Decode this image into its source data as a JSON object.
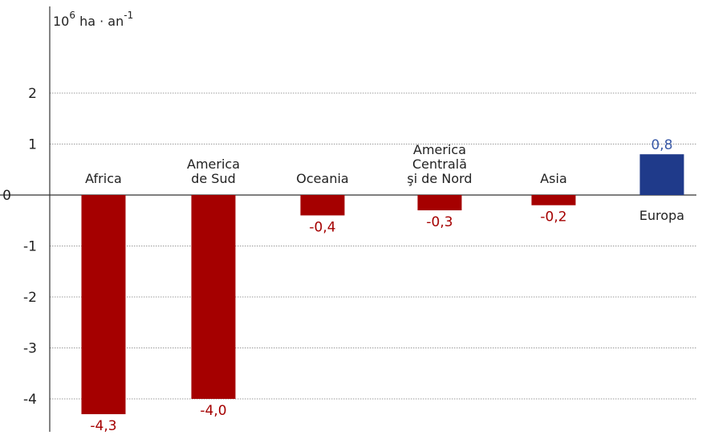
{
  "chart_data": {
    "type": "bar",
    "unit_label": {
      "base": "10",
      "exp1": "6",
      "mid": " ha · an",
      "exp2": "-1"
    },
    "categories": [
      [
        "Africa"
      ],
      [
        "America",
        "de Sud"
      ],
      [
        "Oceania"
      ],
      [
        "America",
        "Centrală",
        "şi de Nord"
      ],
      [
        "Asia"
      ],
      [
        "Europa"
      ]
    ],
    "values": [
      -4.3,
      -4.0,
      -0.4,
      -0.3,
      -0.2,
      0.8
    ],
    "value_labels": [
      "-4,3",
      "-4,0",
      "-0,4",
      "-0,3",
      "-0,2",
      "0,8"
    ],
    "yticks": [
      2,
      1,
      0,
      -1,
      -2,
      -3,
      -4
    ],
    "ylim": [
      -4.5,
      3.5
    ],
    "grid": true,
    "colors": {
      "negative": "#a50000",
      "positive": "#1f3a8a",
      "negative_label": "#a50000",
      "positive_label": "#3a5aa8",
      "grid": "#9a9a9a",
      "axis": "#333333"
    }
  }
}
